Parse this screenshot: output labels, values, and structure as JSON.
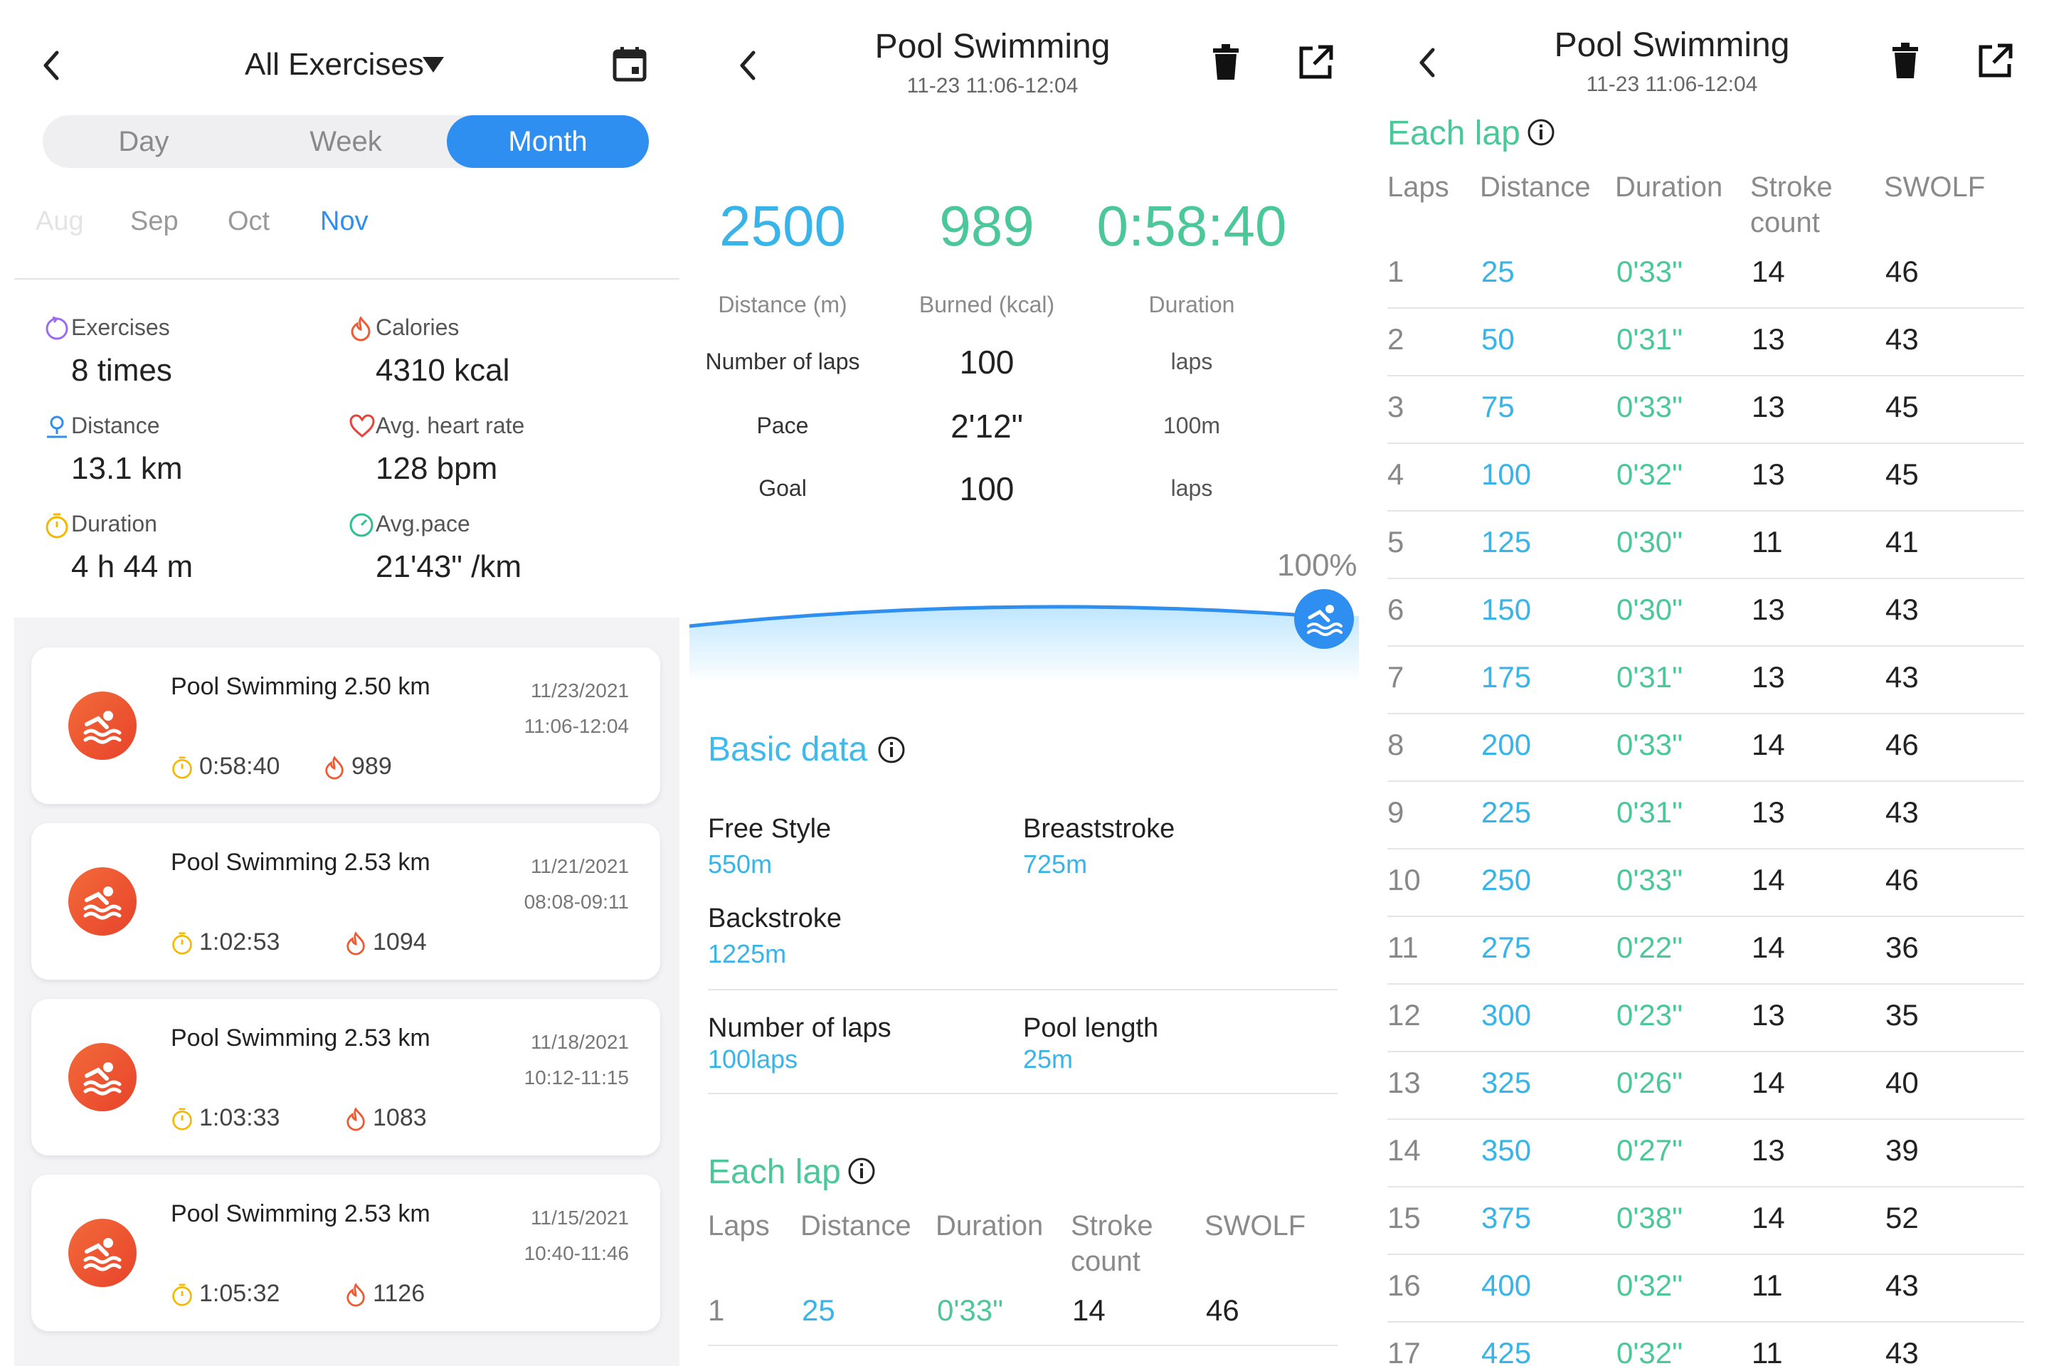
{
  "colors": {
    "accent": "#2f8ff0",
    "teal": "#39b4e8",
    "green": "#4cc79a",
    "orange": "#ed5a33",
    "divider": "#e5e5e5"
  },
  "exercises": {
    "title": "All Exercises",
    "tabs": [
      "Day",
      "Week",
      "Month"
    ],
    "selected_tab": "Month",
    "months": [
      "Aug",
      "Sep",
      "Oct",
      "Nov"
    ],
    "selected_month": "Nov",
    "stats": [
      {
        "label": "Exercises",
        "value": "8 times",
        "icon": "target-icon"
      },
      {
        "label": "Calories",
        "value": "4310 kcal",
        "icon": "flame-icon"
      },
      {
        "label": "Distance",
        "value": "13.1 km",
        "icon": "location-icon"
      },
      {
        "label": "Avg. heart rate",
        "value": "128 bpm",
        "icon": "heart-icon"
      },
      {
        "label": "Duration",
        "value": "4 h 44 m",
        "icon": "stopwatch-icon"
      },
      {
        "label": "Avg.pace",
        "value": "21'43\" /km",
        "icon": "gauge-icon"
      }
    ],
    "records": [
      {
        "title": "Pool Swimming 2.50 km",
        "date": "11/23/2021",
        "time": "11:06-12:04",
        "duration": "0:58:40",
        "calories": "989"
      },
      {
        "title": "Pool Swimming 2.53 km",
        "date": "11/21/2021",
        "time": "08:08-09:11",
        "duration": "1:02:53",
        "calories": "1094"
      },
      {
        "title": "Pool Swimming 2.53 km",
        "date": "11/18/2021",
        "time": "10:12-11:15",
        "duration": "1:03:33",
        "calories": "1083"
      },
      {
        "title": "Pool Swimming 2.53 km",
        "date": "11/15/2021",
        "time": "10:40-11:46",
        "duration": "1:05:32",
        "calories": "1126"
      }
    ]
  },
  "detail": {
    "title": "Pool Swimming",
    "subtitle": "11-23 11:06-12:04",
    "summary": [
      {
        "value": "2500",
        "label": "Distance (m)"
      },
      {
        "value": "989",
        "label": "Burned (kcal)"
      },
      {
        "value": "0:58:40",
        "label": "Duration"
      }
    ],
    "rows": [
      {
        "label": "Number of laps",
        "value": "100",
        "unit": "laps"
      },
      {
        "label": "Pace",
        "value": "2'12\"",
        "unit": "100m"
      },
      {
        "label": "Goal",
        "value": "100",
        "unit": "laps"
      }
    ],
    "progress_label": "100%",
    "progress_fraction": 1.0,
    "basic_data_title": "Basic data",
    "basic": [
      {
        "label": "Free Style",
        "value": "550m"
      },
      {
        "label": "Breaststroke",
        "value": "725m"
      },
      {
        "label": "Backstroke",
        "value": "1225m"
      },
      {
        "label": "Number of laps",
        "value": "100laps"
      },
      {
        "label": "Pool length",
        "value": "25m"
      }
    ],
    "each_lap_title": "Each lap"
  },
  "laps": {
    "title": "Pool Swimming",
    "subtitle": "11-23 11:06-12:04",
    "section_title": "Each lap",
    "headers": {
      "laps": "Laps",
      "distance": "Distance",
      "duration": "Duration",
      "stroke_1": "Stroke",
      "stroke_2": "count",
      "swolf": "SWOLF"
    },
    "rows": [
      {
        "lap": "1",
        "distance": "25",
        "duration": "0'33\"",
        "stroke": "14",
        "swolf": "46"
      },
      {
        "lap": "2",
        "distance": "50",
        "duration": "0'31\"",
        "stroke": "13",
        "swolf": "43"
      },
      {
        "lap": "3",
        "distance": "75",
        "duration": "0'33\"",
        "stroke": "13",
        "swolf": "45"
      },
      {
        "lap": "4",
        "distance": "100",
        "duration": "0'32\"",
        "stroke": "13",
        "swolf": "45"
      },
      {
        "lap": "5",
        "distance": "125",
        "duration": "0'30\"",
        "stroke": "11",
        "swolf": "41"
      },
      {
        "lap": "6",
        "distance": "150",
        "duration": "0'30\"",
        "stroke": "13",
        "swolf": "43"
      },
      {
        "lap": "7",
        "distance": "175",
        "duration": "0'31\"",
        "stroke": "13",
        "swolf": "43"
      },
      {
        "lap": "8",
        "distance": "200",
        "duration": "0'33\"",
        "stroke": "14",
        "swolf": "46"
      },
      {
        "lap": "9",
        "distance": "225",
        "duration": "0'31\"",
        "stroke": "13",
        "swolf": "43"
      },
      {
        "lap": "10",
        "distance": "250",
        "duration": "0'33\"",
        "stroke": "14",
        "swolf": "46"
      },
      {
        "lap": "11",
        "distance": "275",
        "duration": "0'22\"",
        "stroke": "14",
        "swolf": "36"
      },
      {
        "lap": "12",
        "distance": "300",
        "duration": "0'23\"",
        "stroke": "13",
        "swolf": "35"
      },
      {
        "lap": "13",
        "distance": "325",
        "duration": "0'26\"",
        "stroke": "14",
        "swolf": "40"
      },
      {
        "lap": "14",
        "distance": "350",
        "duration": "0'27\"",
        "stroke": "13",
        "swolf": "39"
      },
      {
        "lap": "15",
        "distance": "375",
        "duration": "0'38\"",
        "stroke": "14",
        "swolf": "52"
      },
      {
        "lap": "16",
        "distance": "400",
        "duration": "0'32\"",
        "stroke": "11",
        "swolf": "43"
      },
      {
        "lap": "17",
        "distance": "425",
        "duration": "0'32\"",
        "stroke": "11",
        "swolf": "43"
      }
    ]
  }
}
